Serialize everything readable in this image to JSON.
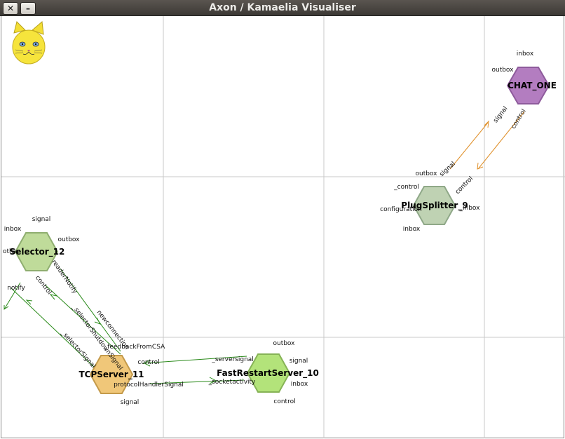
{
  "window": {
    "title": "Axon / Kamaelia Visualiser",
    "close_label": "✕",
    "minimize_label": "–"
  },
  "colors": {
    "green_node": "#bfdb9a",
    "green_node_light": "#b3e37a",
    "purple_node": "#b37dc0",
    "grey_node": "#bfd2b3",
    "orange_node": "#f0c779",
    "orange_link": "#e0902a",
    "green_link": "#2a8a1a",
    "grid": "#c8c8c8"
  },
  "logo": {
    "icon": "cat-logo-icon"
  },
  "nodes": {
    "chat_one": {
      "label": "CHAT_ONE",
      "ports": {
        "inbox": "inbox",
        "outbox": "outbox",
        "signal": "signal",
        "control": "control"
      }
    },
    "plug_splitter": {
      "label": "PlugSplitter_9",
      "ports": {
        "outbox": "outbox",
        "control_priv": "_control",
        "configuration": "configuration",
        "inbox_priv": "_inbox",
        "inbox": "inbox",
        "signal": "signal",
        "control": "control"
      }
    },
    "selector": {
      "label": "Selector_12",
      "ports": {
        "signal": "signal",
        "inbox": "inbox",
        "outbox": "outbox",
        "other": "other",
        "notify": "notify",
        "control": "control",
        "reader_notify": "readerNotify"
      }
    },
    "tcp_server": {
      "label": "TCPServer_11",
      "ports": {
        "feedback": "_feedbackFromCSA",
        "control": "control",
        "protocol": "protocolHandlerSignal",
        "signal": "signal",
        "selector_signal": "_selectorSignal",
        "selector_shutdown": "_selectorShutdownSignal",
        "newconnection": "newconnection"
      }
    },
    "fast_restart": {
      "label": "FastRestartServer_10",
      "ports": {
        "outbox": "outbox",
        "signal": "signal",
        "inbox": "inbox",
        "control": "control",
        "serversignal": "_serversignal",
        "socketactivity": "_socketactivity"
      }
    }
  }
}
